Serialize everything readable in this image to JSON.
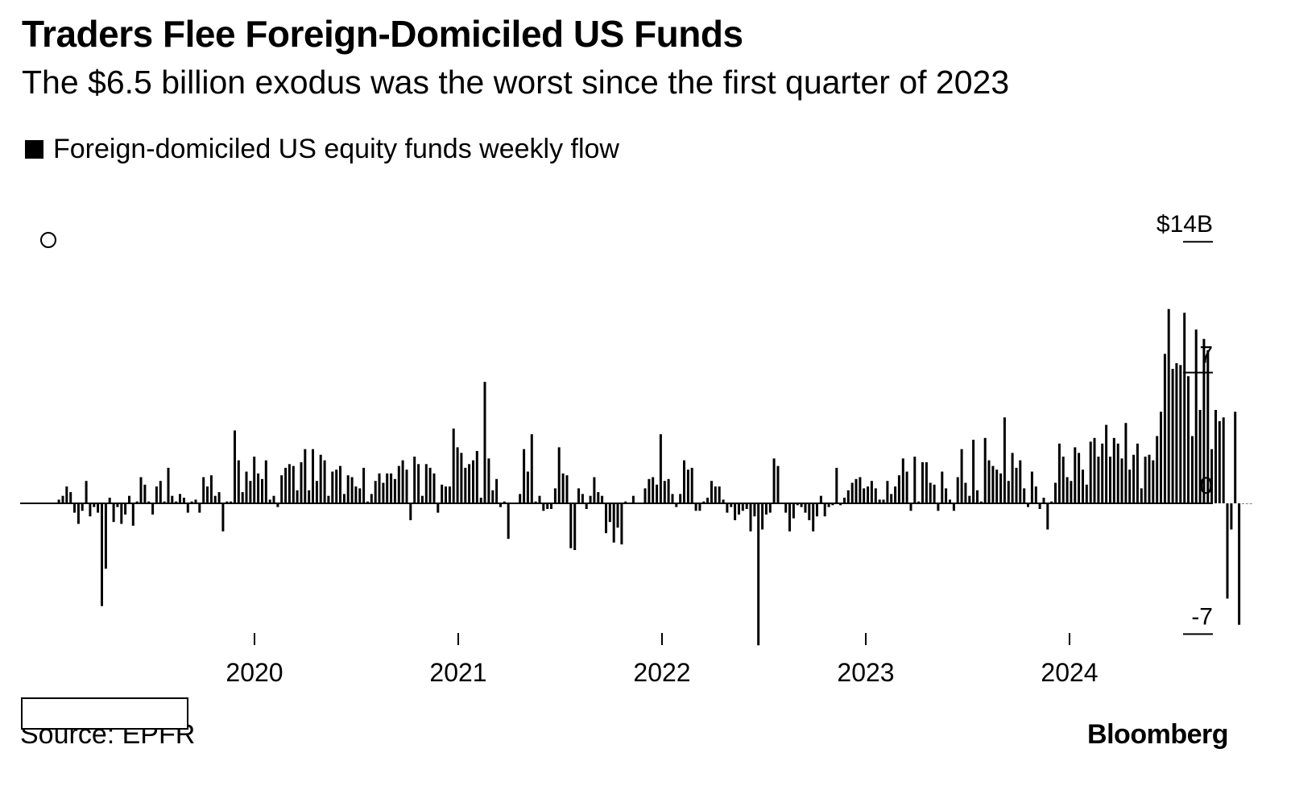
{
  "header": {
    "title": "Traders Flee Foreign-Domiciled US Funds",
    "subtitle": "The $6.5 billion exodus was the worst since the first quarter of 2023"
  },
  "legend": {
    "items": [
      {
        "label": "Foreign-domiciled US equity funds weekly flow",
        "color": "#000000"
      }
    ]
  },
  "footer": {
    "source": "Source: EPFR",
    "brand": "Bloomberg"
  },
  "chart_data": {
    "type": "bar",
    "title": "Traders Flee Foreign-Domiciled US Funds",
    "subtitle": "The $6.5 billion exodus was the worst since the first quarter of 2023",
    "xlabel": "",
    "ylabel": "",
    "ylim": [
      -7.6,
      17.7
    ],
    "y_ticks": [
      {
        "value": 14,
        "label": "$14B"
      },
      {
        "value": 7,
        "label": "7"
      },
      {
        "value": 0,
        "label": "0"
      },
      {
        "value": -7,
        "label": "-7"
      }
    ],
    "x_ticks": [
      {
        "value": 2020,
        "label": "2020"
      },
      {
        "value": 2021,
        "label": "2021"
      },
      {
        "value": 2022,
        "label": "2022"
      },
      {
        "value": 2023,
        "label": "2023"
      },
      {
        "value": 2024,
        "label": "2024"
      }
    ],
    "x_start_year": 2019.04,
    "week_step_years": 0.01918,
    "grid": false,
    "legend_position": "top-left",
    "series": [
      {
        "name": "Foreign-domiciled US equity funds weekly flow",
        "color": "#000000",
        "values": [
          0.2,
          0.4,
          0.9,
          0.6,
          -0.5,
          -1.1,
          -0.4,
          1.2,
          -0.7,
          -0.2,
          -0.5,
          -5.5,
          -3.5,
          0.3,
          -1.0,
          -0.2,
          -1.1,
          -0.6,
          0.4,
          -1.2,
          0.1,
          1.4,
          1.0,
          0.1,
          -0.6,
          0.9,
          1.2,
          0.1,
          1.9,
          0.4,
          0.1,
          0.5,
          0.3,
          -0.5,
          0.1,
          0.2,
          -0.5,
          1.4,
          0.9,
          1.5,
          0.4,
          0.6,
          -1.5,
          0.1,
          0.1,
          3.9,
          2.3,
          0.6,
          1.7,
          1.2,
          2.5,
          1.6,
          1.3,
          2.3,
          0.2,
          0.4,
          -0.2,
          1.5,
          1.9,
          2.1,
          2.0,
          0.7,
          2.2,
          2.9,
          0.7,
          2.9,
          1.2,
          2.6,
          2.3,
          0.4,
          1.7,
          1.8,
          2.0,
          0.5,
          1.5,
          1.4,
          0.9,
          0.8,
          1.9,
          0.1,
          0.5,
          1.2,
          1.6,
          1.1,
          1.6,
          1.6,
          1.3,
          2.0,
          2.3,
          1.8,
          -0.9,
          2.5,
          2.1,
          0.4,
          2.1,
          1.9,
          1.6,
          -0.5,
          1.0,
          0.9,
          0.9,
          4.0,
          3.0,
          2.7,
          1.9,
          2.1,
          2.3,
          2.8,
          0.3,
          6.5,
          2.4,
          0.7,
          1.3,
          -0.2,
          0.1,
          -1.9,
          0.0,
          0.0,
          0.5,
          2.9,
          1.7,
          3.7,
          0.1,
          0.4,
          -0.4,
          -0.3,
          -0.3,
          0.8,
          3.0,
          1.6,
          1.5,
          -2.4,
          -2.5,
          0.8,
          0.5,
          -0.3,
          0.4,
          1.4,
          0.6,
          0.4,
          -1.6,
          -1.0,
          -2.1,
          -1.3,
          -2.2,
          0.1,
          0.0,
          0.4,
          0.0,
          0.0,
          0.8,
          1.3,
          1.4,
          1.0,
          3.7,
          1.2,
          1.3,
          0.5,
          -0.2,
          0.5,
          2.3,
          1.8,
          1.9,
          -0.4,
          -0.4,
          0.1,
          0.3,
          1.2,
          0.9,
          0.9,
          0.2,
          -0.5,
          -0.2,
          -0.9,
          -0.6,
          -0.4,
          -0.3,
          -1.5,
          -0.7,
          -7.6,
          -1.4,
          -0.6,
          -0.5,
          2.4,
          2.0,
          0.0,
          -0.5,
          -1.5,
          -0.8,
          -0.1,
          -0.2,
          -0.5,
          -0.9,
          -1.5,
          -0.7,
          0.4,
          -0.7,
          -0.2,
          -0.1,
          1.9,
          -0.1,
          0.3,
          0.7,
          1.1,
          1.3,
          1.4,
          0.8,
          0.9,
          1.2,
          0.8,
          0.2,
          0.2,
          1.2,
          0.5,
          0.9,
          1.5,
          2.4,
          1.7,
          -0.4,
          2.5,
          0.1,
          2.2,
          2.2,
          1.1,
          1.0,
          -0.4,
          1.7,
          0.8,
          0.2,
          -0.4,
          1.4,
          2.9,
          1.1,
          0.4,
          3.4,
          0.7,
          0.1,
          3.5,
          2.3,
          2.0,
          1.8,
          1.6,
          4.6,
          1.2,
          2.7,
          1.9,
          2.3,
          0.8,
          -0.2,
          1.7,
          0.9,
          -0.3,
          0.3,
          -1.4,
          0.1,
          1.1,
          3.2,
          2.5,
          1.4,
          1.2,
          3.0,
          2.7,
          1.8,
          1.0,
          3.3,
          3.5,
          2.5,
          3.2,
          4.2,
          2.5,
          3.5,
          3.2,
          2.4,
          4.3,
          1.8,
          2.6,
          3.2,
          0.8,
          2.5,
          2.6,
          2.3,
          3.6,
          4.9,
          8.0,
          10.4,
          7.2,
          7.5,
          7.4,
          10.2,
          6.8,
          3.6,
          9.3,
          5.0,
          8.8,
          8.2,
          2.9,
          5.0,
          4.4,
          4.6,
          -5.1,
          -1.4,
          4.9,
          -6.5,
          0.0,
          0.0,
          0.0
        ]
      }
    ]
  }
}
